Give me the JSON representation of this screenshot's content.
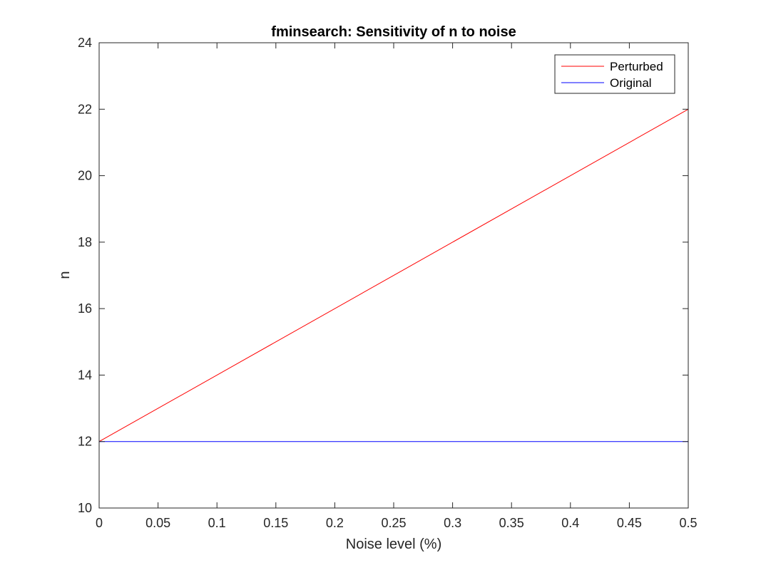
{
  "chart_data": {
    "type": "line",
    "title": "fminsearch: Sensitivity of n to noise",
    "xlabel": "Noise level (%)",
    "ylabel": "n",
    "xlim": [
      0,
      0.5
    ],
    "ylim": [
      10,
      24
    ],
    "xticks": [
      "0",
      "0.05",
      "0.1",
      "0.15",
      "0.2",
      "0.25",
      "0.3",
      "0.35",
      "0.4",
      "0.45",
      "0.5"
    ],
    "yticks": [
      "10",
      "12",
      "14",
      "16",
      "18",
      "20",
      "22",
      "24"
    ],
    "xtick_values": [
      0,
      0.05,
      0.1,
      0.15,
      0.2,
      0.25,
      0.3,
      0.35,
      0.4,
      0.45,
      0.5
    ],
    "ytick_values": [
      10,
      12,
      14,
      16,
      18,
      20,
      22,
      24
    ],
    "grid": false,
    "legend_position": "top-right",
    "series": [
      {
        "name": "Perturbed",
        "color": "#ff0000",
        "x": [
          0,
          0.5
        ],
        "y": [
          12,
          22
        ]
      },
      {
        "name": "Original",
        "color": "#0000ff",
        "x": [
          0,
          0.5
        ],
        "y": [
          12,
          12
        ]
      }
    ]
  }
}
